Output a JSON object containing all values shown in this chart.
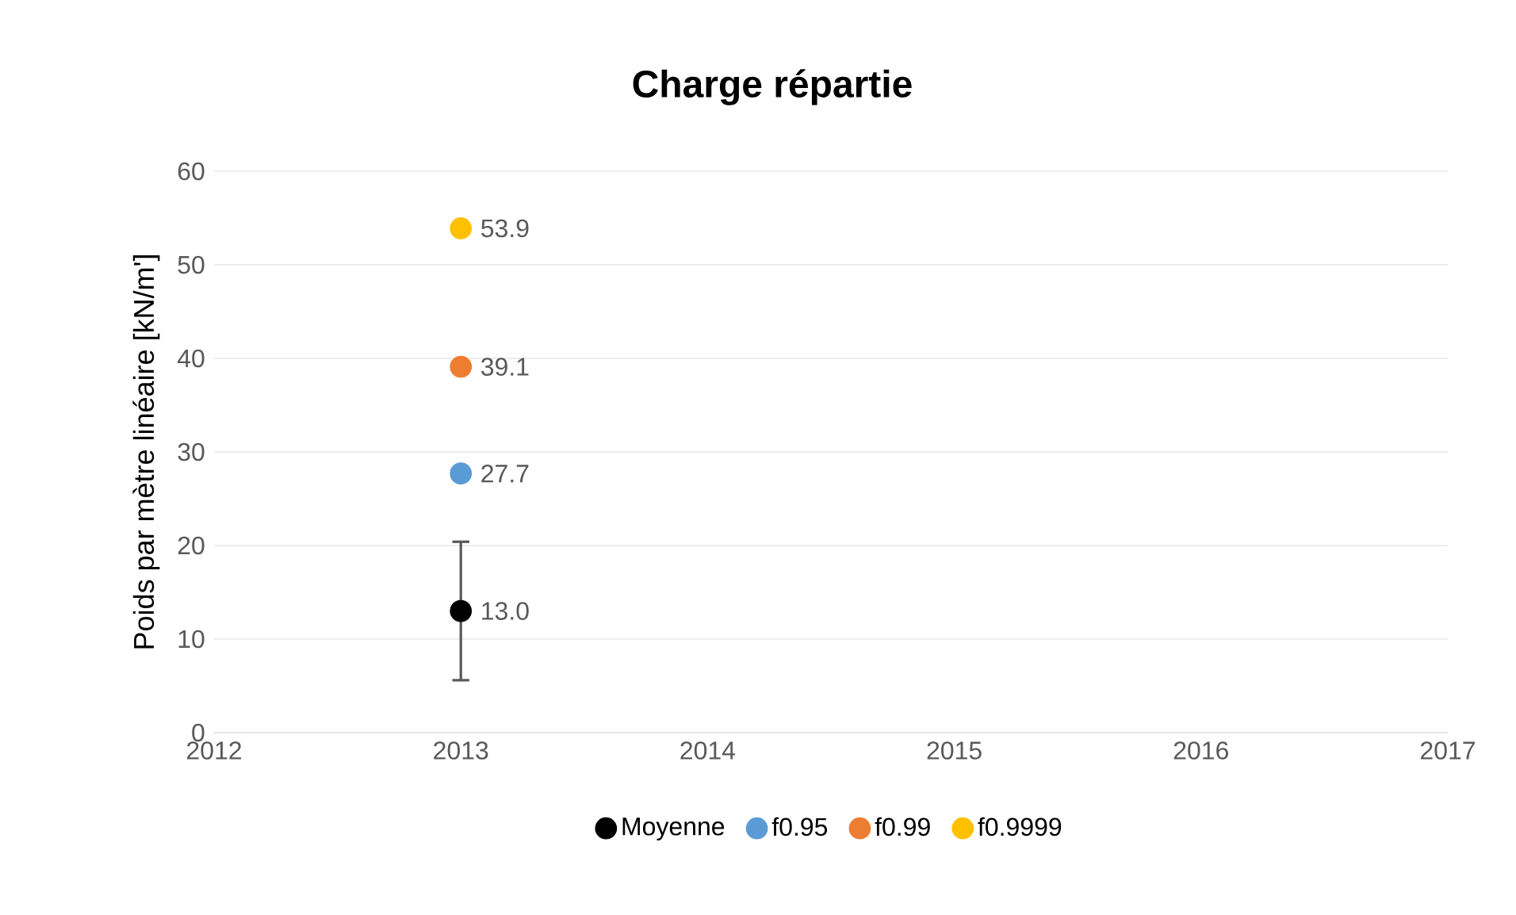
{
  "chart_data": {
    "type": "scatter",
    "title": "Charge répartie",
    "ylabel": "Poids par mètre linéaire [kN/m']",
    "xlim": [
      2012,
      2017
    ],
    "xticks": [
      2012,
      2013,
      2014,
      2015,
      2016,
      2017
    ],
    "ylim": [
      0,
      60
    ],
    "yticks": [
      0,
      10,
      20,
      30,
      40,
      50,
      60
    ],
    "x": [
      2013
    ],
    "grid": "y",
    "legend": "bottom",
    "marker": "circle",
    "series": [
      {
        "name": "Moyenne",
        "color": "#000000",
        "values": [
          13.0
        ],
        "value_labels": [
          "13.0"
        ],
        "errors": [
          [
            5.6,
            20.4
          ]
        ]
      },
      {
        "name": "f0.95",
        "color": "#5b9bd5",
        "values": [
          27.7
        ],
        "value_labels": [
          "27.7"
        ]
      },
      {
        "name": "f0.99",
        "color": "#ed7d31",
        "values": [
          39.1
        ],
        "value_labels": [
          "39.1"
        ]
      },
      {
        "name": "f0.9999",
        "color": "#ffc000",
        "values": [
          53.9
        ],
        "value_labels": [
          "53.9"
        ]
      }
    ]
  }
}
